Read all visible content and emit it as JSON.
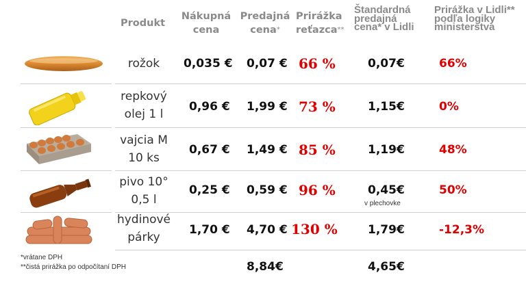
{
  "headers": {
    "product": "Produkt",
    "purchase_price_l1": "Nákupná",
    "purchase_price_l2": "cena",
    "selling_price_l1": "Predajná",
    "selling_price_l2": "cena",
    "selling_price_mark": "*",
    "markup_l1": "Prirážka",
    "markup_l2": "reťazca",
    "markup_mark": "**",
    "lidl_l1": "Štandardná",
    "lidl_l2": "predajná",
    "lidl_l3": "cena* v Lidli",
    "ministry_l1": "Prirážka v Lidli**",
    "ministry_l2": "podľa logiky",
    "ministry_l3": "ministerstva"
  },
  "rows": [
    {
      "product_l1": "rožok",
      "product_l2": "",
      "purchase": "0,035 €",
      "selling": "0,07 €",
      "markup": "66 %",
      "lidl": "0,07€",
      "lidl_note": "",
      "ministry": "66%",
      "image": "bread-roll-icon"
    },
    {
      "product_l1": "repkový",
      "product_l2": "olej 1 l",
      "purchase": "0,96 €",
      "selling": "1,99 €",
      "markup": "73 %",
      "lidl": "1,15€",
      "lidl_note": "",
      "ministry": "0%",
      "image": "oil-bottle-icon"
    },
    {
      "product_l1": "vajcia M",
      "product_l2": "10 ks",
      "purchase": "0,67 €",
      "selling": "1,49 €",
      "markup": "85 %",
      "lidl": "1,19€",
      "lidl_note": "",
      "ministry": "48%",
      "image": "egg-carton-icon"
    },
    {
      "product_l1": "pivo 10°",
      "product_l2": "0,5 l",
      "purchase": "0,25 €",
      "selling": "0,59 €",
      "markup": "96 %",
      "lidl": "0,45€",
      "lidl_note": "v plechovke",
      "ministry": "50%",
      "image": "beer-bottle-icon"
    },
    {
      "product_l1": "hydinové",
      "product_l2": "párky",
      "purchase": "1,70 €",
      "selling": "4,70 €",
      "markup": "130 %",
      "lidl": "1,79€",
      "lidl_note": "",
      "ministry": "-12,3%",
      "image": "sausages-icon"
    }
  ],
  "totals": {
    "selling": "8,84€",
    "lidl": "4,65€"
  },
  "footnotes": {
    "vat": "*vrátane DPH",
    "net": "**čistá prirážka po odpočítaní DPH"
  }
}
